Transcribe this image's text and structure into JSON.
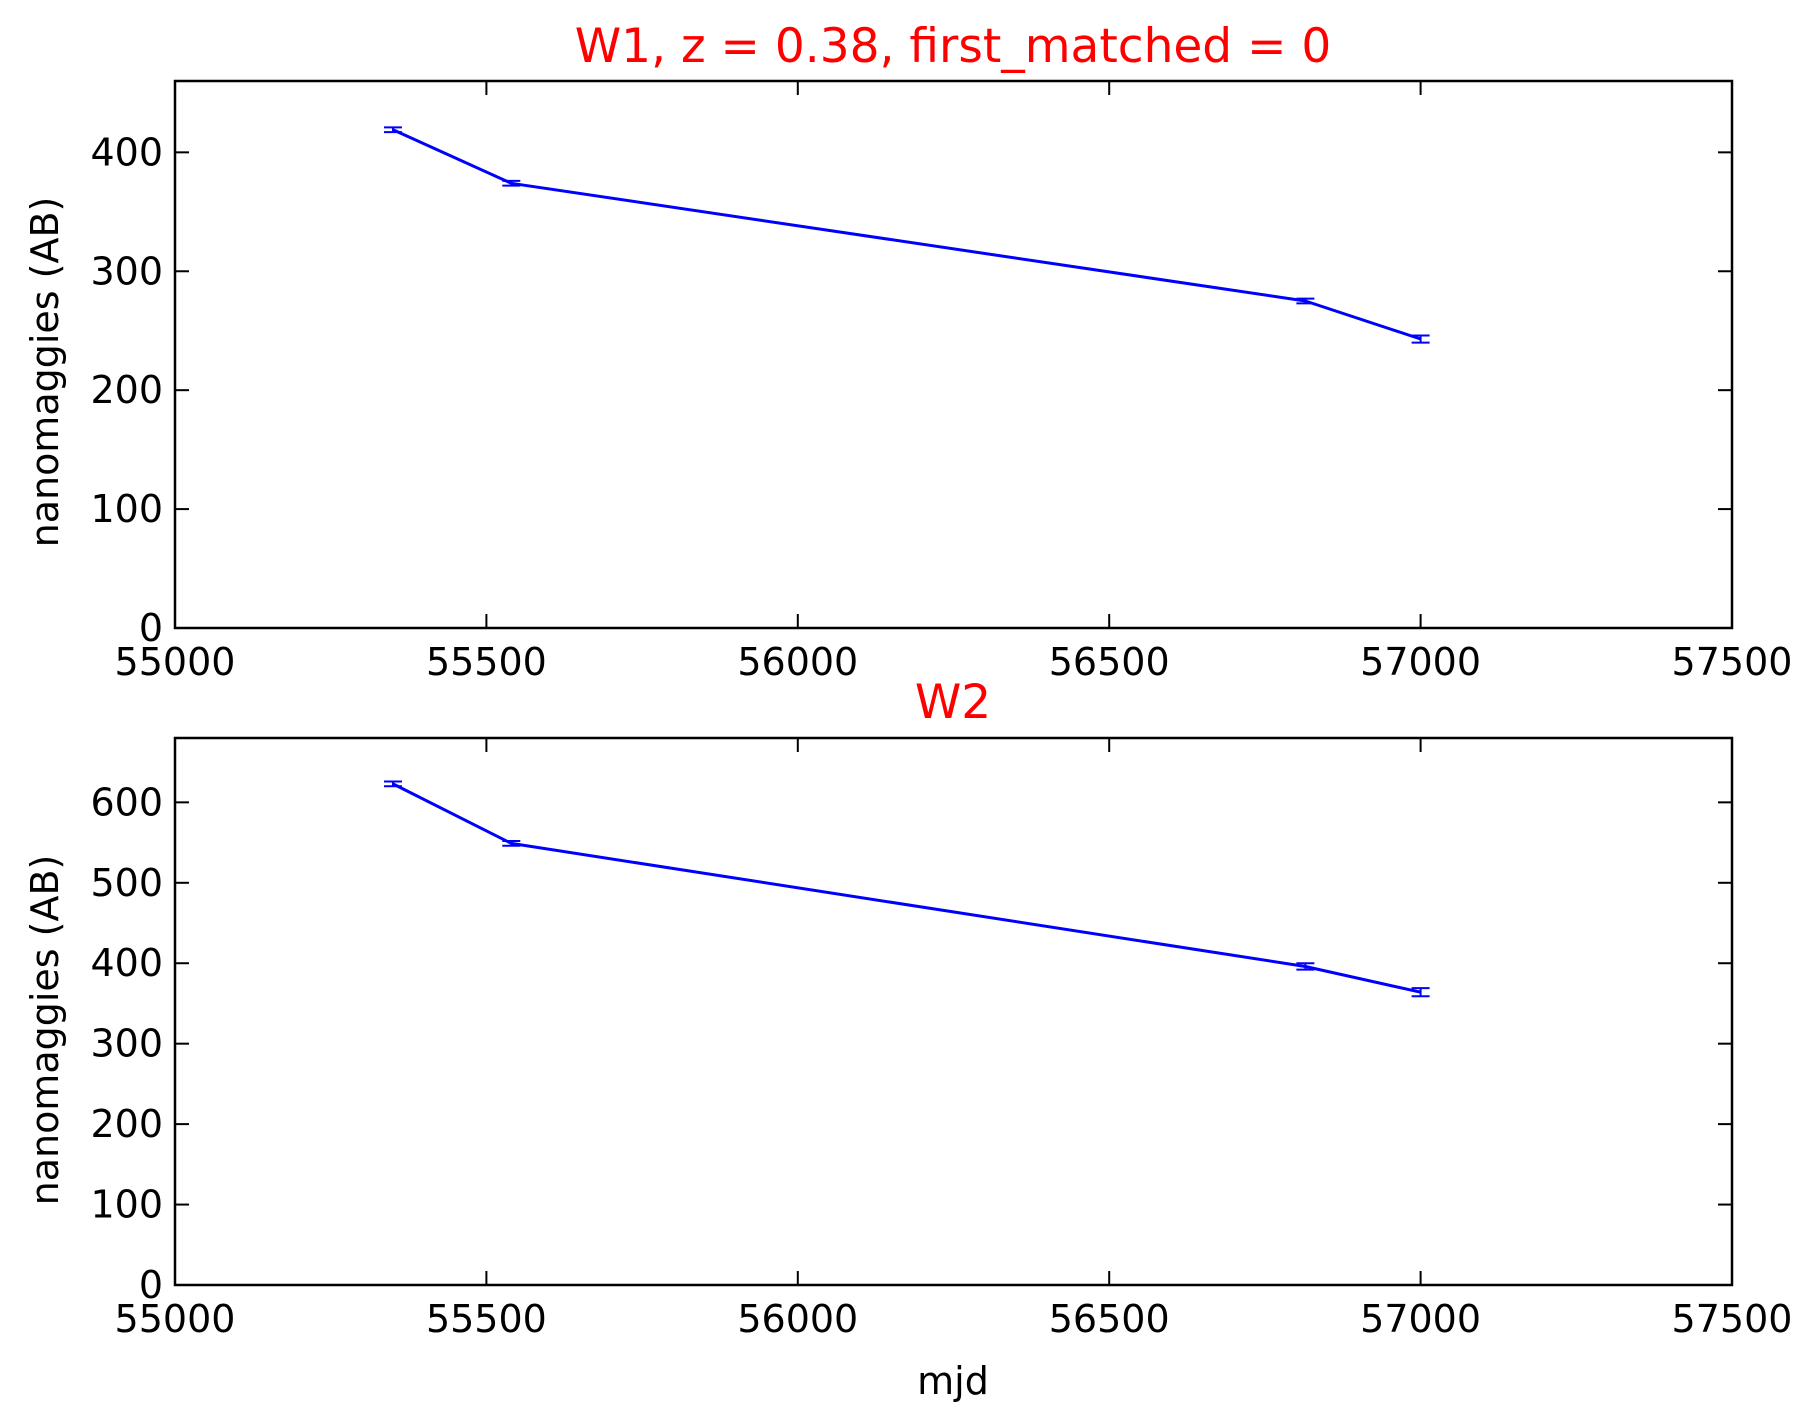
{
  "chart_data": [
    {
      "type": "line",
      "title": "W1, z = 0.38, first_matched = 0",
      "xlabel": "",
      "ylabel": "nanomaggies (AB)",
      "xlim": [
        55000,
        57500
      ],
      "ylim": [
        0,
        460
      ],
      "xticks": [
        "55000",
        "55500",
        "56000",
        "56500",
        "57000",
        "57500"
      ],
      "yticks": [
        "0",
        "100",
        "200",
        "300",
        "400"
      ],
      "grid": false,
      "series": [
        {
          "x": [
            55350,
            55540,
            56815,
            57000
          ],
          "y": [
            419,
            374,
            275,
            243
          ],
          "yerr": [
            2,
            2,
            2,
            3
          ]
        }
      ]
    },
    {
      "type": "line",
      "title": "W2",
      "xlabel": "mjd",
      "ylabel": "nanomaggies (AB)",
      "xlim": [
        55000,
        57500
      ],
      "ylim": [
        0,
        680
      ],
      "xticks": [
        "55000",
        "55500",
        "56000",
        "56500",
        "57000",
        "57500"
      ],
      "yticks": [
        "0",
        "100",
        "200",
        "300",
        "400",
        "500",
        "600"
      ],
      "grid": false,
      "series": [
        {
          "x": [
            55350,
            55540,
            56815,
            57000
          ],
          "y": [
            623,
            549,
            396,
            364
          ],
          "yerr": [
            3,
            3,
            4,
            5
          ]
        }
      ]
    }
  ],
  "colors": {
    "line": "#0000ff",
    "title": "#ff0000",
    "axes": "#000000"
  }
}
